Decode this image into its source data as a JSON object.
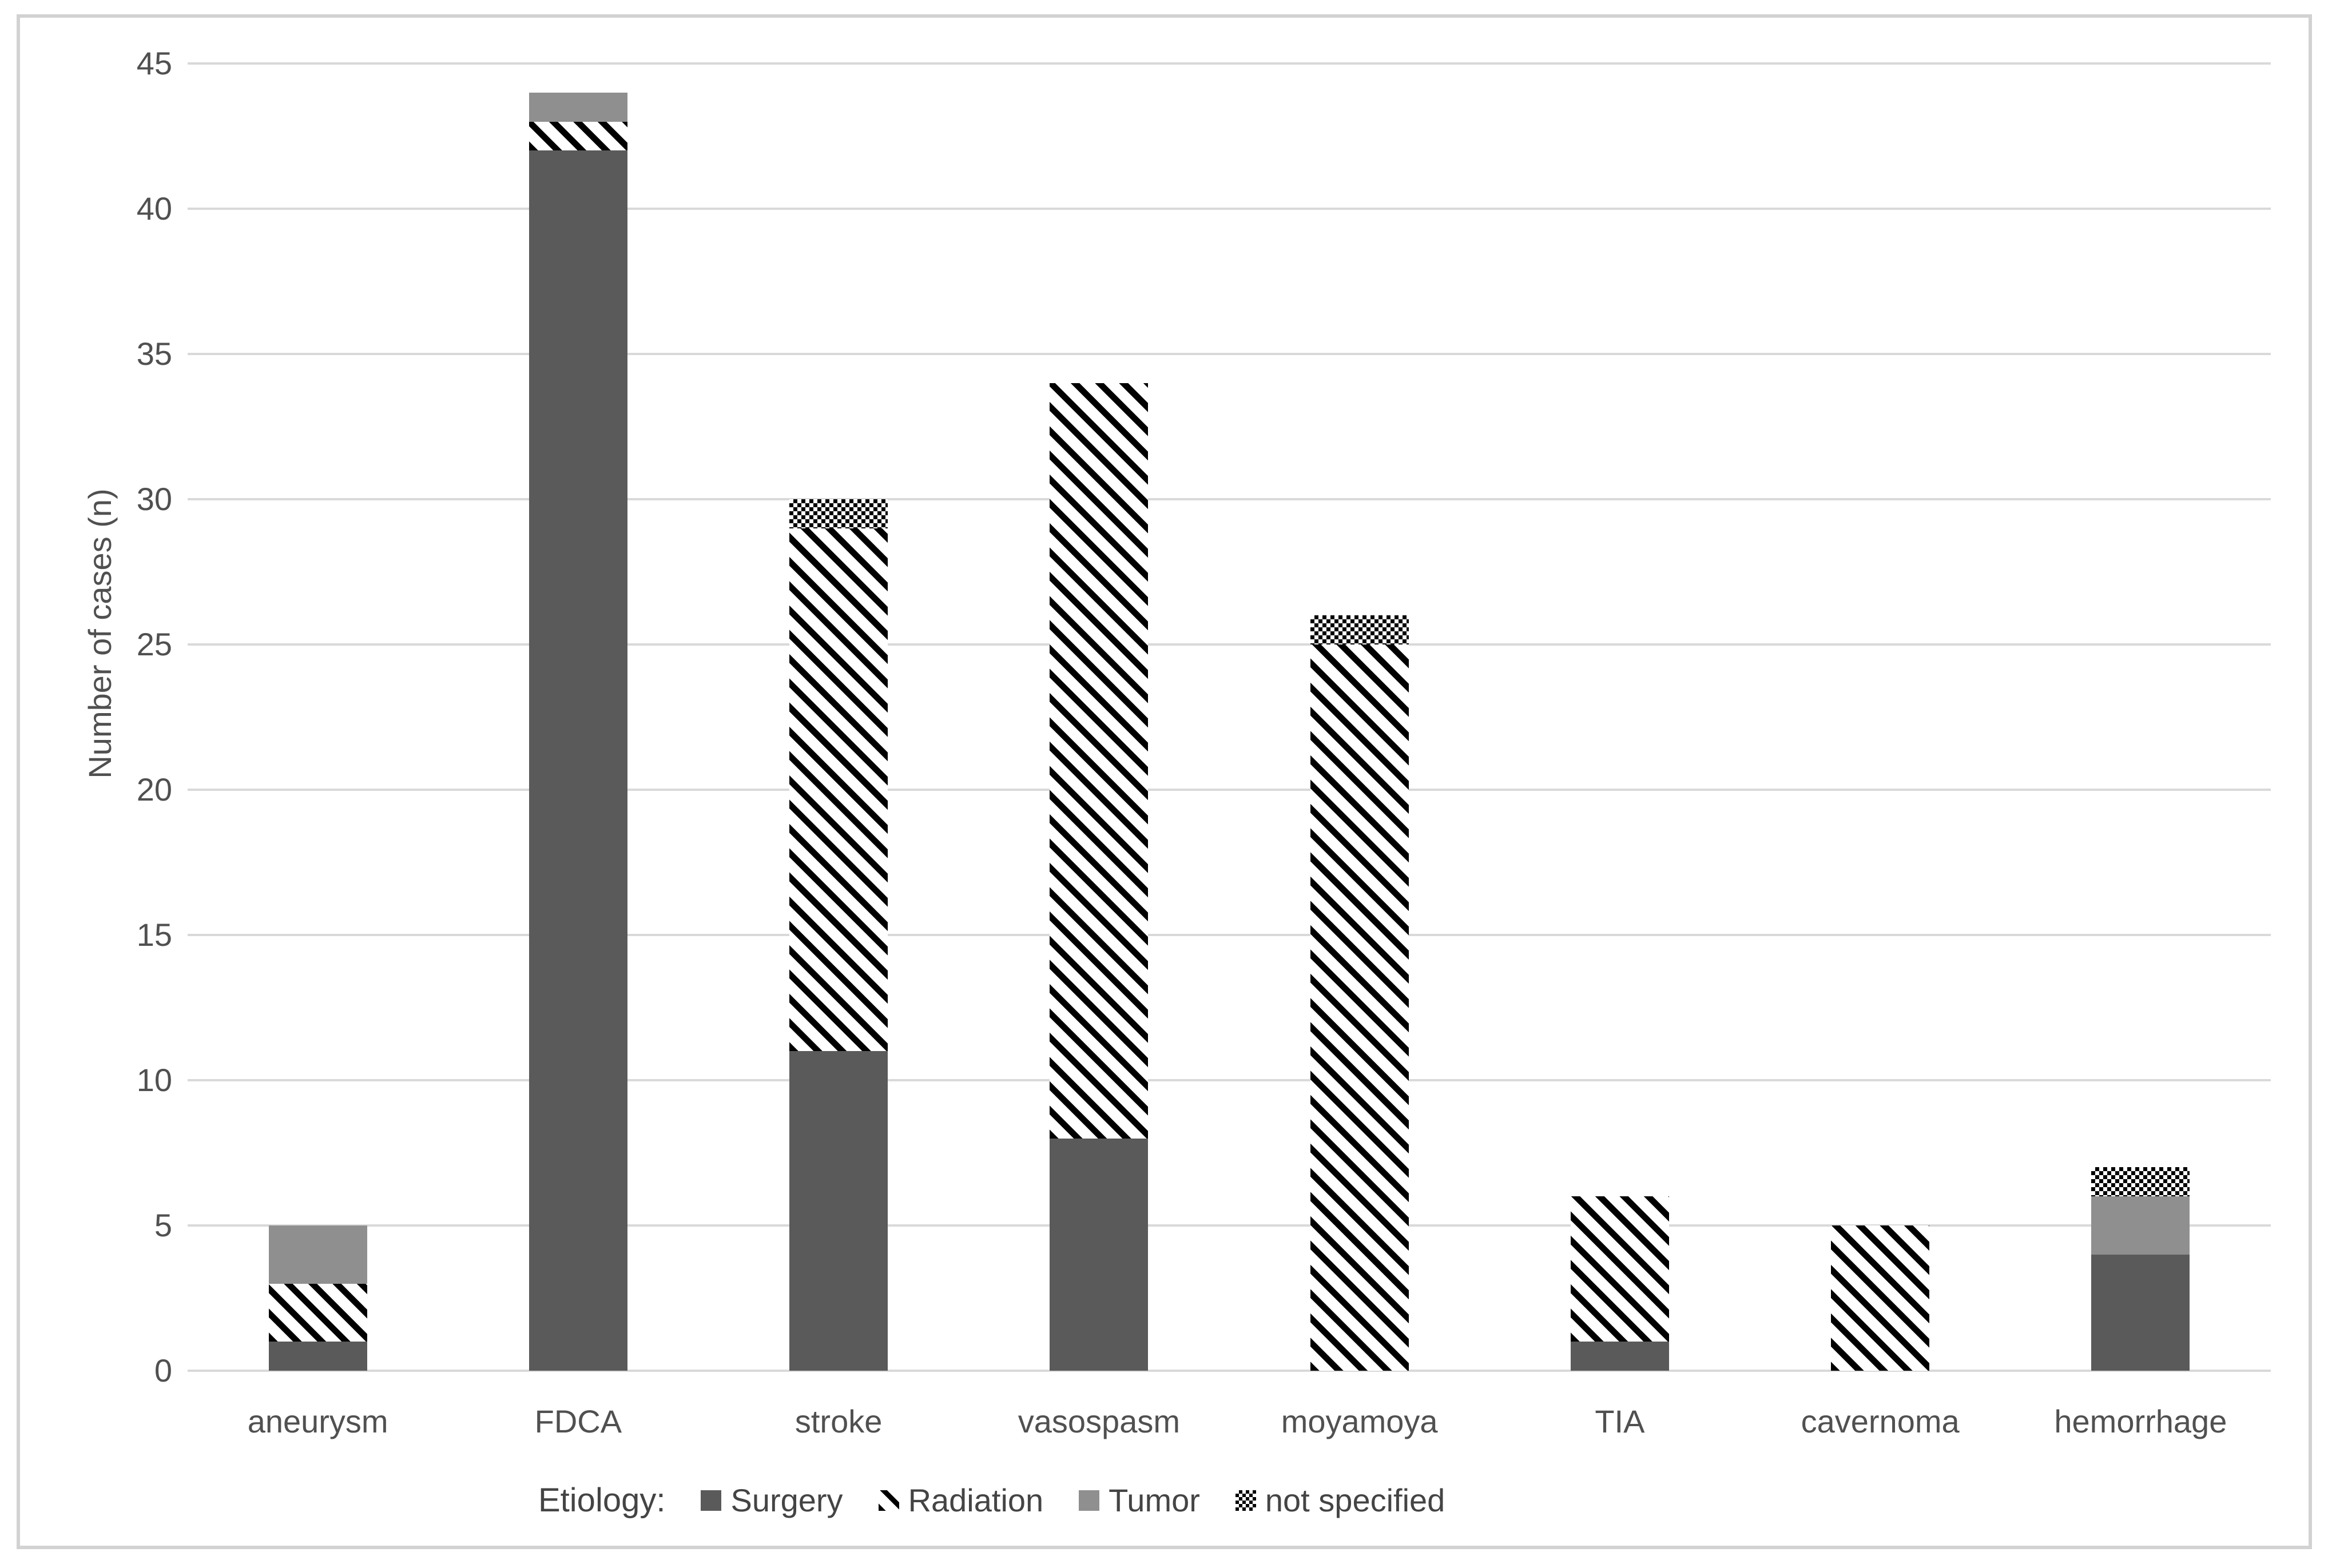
{
  "chart_data": {
    "type": "bar",
    "stacked": true,
    "title": "",
    "xlabel": "",
    "ylabel": "Number of cases (n)",
    "categories": [
      "aneurysm",
      "FDCA",
      "stroke",
      "vasospasm",
      "moyamoya",
      "TIA",
      "cavernoma",
      "hemorrhage"
    ],
    "series": [
      {
        "name": "Surgery",
        "pattern": "solid-dark-gray",
        "color": "#5a5a5a",
        "values": [
          1,
          42,
          11,
          8,
          0,
          1,
          0,
          4
        ]
      },
      {
        "name": "Radiation",
        "pattern": "diagonal-stripes-black-on-white",
        "color": "#000000",
        "values": [
          2,
          1,
          18,
          26,
          25,
          5,
          5,
          0
        ]
      },
      {
        "name": "Tumor",
        "pattern": "solid-medium-gray",
        "color": "#8f8f8f",
        "values": [
          2,
          1,
          0,
          0,
          0,
          0,
          0,
          2
        ]
      },
      {
        "name": "not specified",
        "pattern": "checkerboard-black-on-white",
        "color": "#000000",
        "values": [
          0,
          0,
          1,
          0,
          1,
          0,
          0,
          1
        ]
      }
    ],
    "totals": [
      5,
      44,
      30,
      34,
      26,
      6,
      5,
      7
    ],
    "ylim": [
      0,
      45
    ],
    "yticks": [
      0,
      5,
      10,
      15,
      20,
      25,
      30,
      35,
      40,
      45
    ],
    "grid": "horizontal-only",
    "legend_title": "Etiology:",
    "legend_position": "bottom"
  },
  "colors": {
    "surgery": "#5a5a5a",
    "tumor": "#8f8f8f",
    "pattern_ink": "#000000",
    "gridline": "#d9d9d9",
    "axis_text": "#505050",
    "frame_border": "#d2d2d2",
    "background": "#ffffff"
  }
}
